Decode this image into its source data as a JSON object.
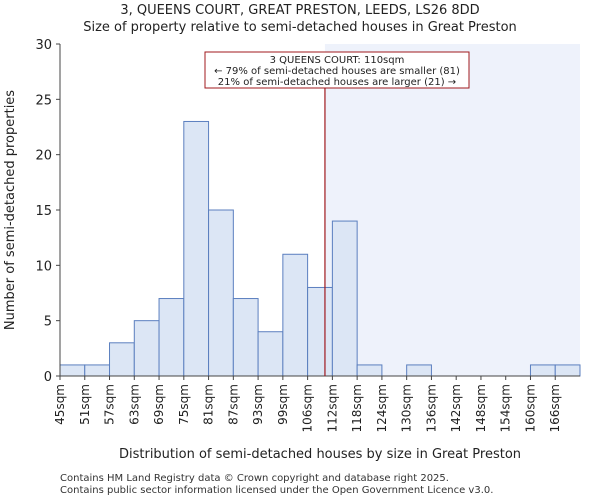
{
  "title_line1": "3, QUEENS COURT, GREAT PRESTON, LEEDS, LS26 8DD",
  "title_line2": "Size of property relative to semi-detached houses in Great Preston",
  "footer_line1": "Contains HM Land Registry data © Crown copyright and database right 2025.",
  "footer_line2": "Contains public sector information licensed under the Open Government Licence v3.0.",
  "colors": {
    "bar_fill": "#dce6f5",
    "bar_stroke": "#5b7fbf",
    "highlight_bg": "#eef2fb",
    "marker": "#a0191e",
    "annotation_border": "#a0191e"
  },
  "chart_data": {
    "type": "bar",
    "xlabel": "Distribution of semi-detached houses by size in Great Preston",
    "ylabel": "Number of semi-detached properties",
    "ylim": [
      0,
      30
    ],
    "yticks": [
      0,
      5,
      10,
      15,
      20,
      25,
      30
    ],
    "categories": [
      "45sqm",
      "51sqm",
      "57sqm",
      "63sqm",
      "69sqm",
      "75sqm",
      "81sqm",
      "87sqm",
      "93sqm",
      "99sqm",
      "106sqm",
      "112sqm",
      "118sqm",
      "124sqm",
      "130sqm",
      "136sqm",
      "142sqm",
      "148sqm",
      "154sqm",
      "160sqm",
      "166sqm"
    ],
    "values": [
      1,
      1,
      3,
      5,
      7,
      23,
      15,
      7,
      4,
      11,
      8,
      14,
      1,
      0,
      1,
      0,
      0,
      0,
      0,
      1,
      1
    ],
    "marker_bin_position": 10.7,
    "highlight_start_bin": 10.7,
    "annotation": {
      "line1": "3 QUEENS COURT: 110sqm",
      "line2": "← 79% of semi-detached houses are smaller (81)",
      "line3": "21% of semi-detached houses are larger (21) →"
    }
  }
}
